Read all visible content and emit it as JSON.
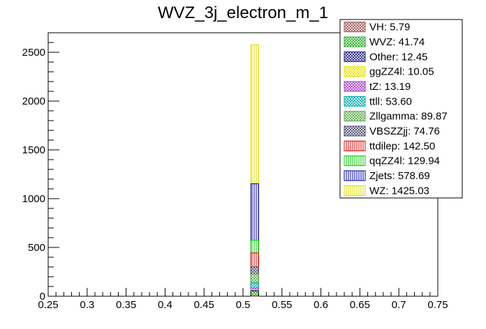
{
  "chart_data": {
    "type": "bar",
    "title": "WVZ_3j_electron_m_1",
    "xlabel": "",
    "ylabel": "",
    "xlim": [
      0.25,
      0.75
    ],
    "ylim": [
      0,
      2700
    ],
    "x_ticks": [
      "0.25",
      "0.3",
      "0.35",
      "0.4",
      "0.45",
      "0.5",
      "0.55",
      "0.6",
      "0.65",
      "0.7",
      "0.75"
    ],
    "y_ticks": [
      "0",
      "500",
      "1000",
      "1500",
      "2000",
      "2500"
    ],
    "bin": {
      "low": 0.51,
      "high": 0.52
    },
    "stacked": true,
    "legend_position": "top-right",
    "series": [
      {
        "name": "VH",
        "value": 5.79,
        "legend_label": "VH: 5.79",
        "color": "#a05050",
        "pattern": "crosshatch"
      },
      {
        "name": "WVZ",
        "value": 41.74,
        "legend_label": "WVZ: 41.74",
        "color": "#22aa22",
        "pattern": "crosshatch"
      },
      {
        "name": "Other",
        "value": 12.45,
        "legend_label": "Other: 12.45",
        "color": "#1a1a8a",
        "pattern": "crosshatch"
      },
      {
        "name": "ggZZ4l",
        "value": 10.05,
        "legend_label": "ggZZ4l: 10.05",
        "color": "#e6e600",
        "pattern": "crosshatch"
      },
      {
        "name": "tZ",
        "value": 13.19,
        "legend_label": "tZ: 13.19",
        "color": "#aa33cc",
        "pattern": "crosshatch"
      },
      {
        "name": "ttll",
        "value": 53.6,
        "legend_label": "ttll: 53.60",
        "color": "#00aaaa",
        "pattern": "crosshatch"
      },
      {
        "name": "Zllgamma",
        "value": 89.87,
        "legend_label": "Zllgamma: 89.87",
        "color": "#55aa44",
        "pattern": "crosshatch"
      },
      {
        "name": "VBSZZjj",
        "value": 74.76,
        "legend_label": "VBSZZjj: 74.76",
        "color": "#44446a",
        "pattern": "crosshatch"
      },
      {
        "name": "ttdilep",
        "value": 142.5,
        "legend_label": "ttdilep: 142.50",
        "color": "#dd0000",
        "pattern": "vertical"
      },
      {
        "name": "qqZZ4l",
        "value": 129.94,
        "legend_label": "qqZZ4l: 129.94",
        "color": "#00cc00",
        "pattern": "vertical"
      },
      {
        "name": "Zjets",
        "value": 578.69,
        "legend_label": "Zjets: 578.69",
        "color": "#0000aa",
        "pattern": "vertical"
      },
      {
        "name": "WZ",
        "value": 1425.03,
        "legend_label": "WZ: 1425.03",
        "color": "#dddd00",
        "pattern": "vertical"
      }
    ]
  }
}
